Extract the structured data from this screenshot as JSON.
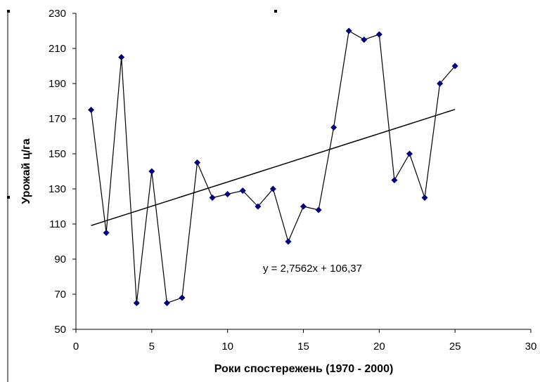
{
  "chart_data": {
    "type": "scatter",
    "title": "",
    "xlabel": "Роки спостережень (1970 - 2000)",
    "ylabel": "Урожай ц/га",
    "xlim": [
      0,
      30
    ],
    "ylim": [
      50,
      230
    ],
    "x_ticks": [
      0,
      5,
      10,
      15,
      20,
      25,
      30
    ],
    "y_ticks": [
      50,
      70,
      90,
      110,
      130,
      150,
      170,
      190,
      210,
      230
    ],
    "grid": false,
    "legend": "none",
    "series": [
      {
        "x": [
          1,
          2,
          3,
          4,
          5,
          6,
          7,
          8,
          9,
          10,
          11,
          12,
          13,
          14,
          15,
          16,
          17,
          18,
          19,
          20,
          21,
          22,
          23,
          24,
          25
        ],
        "y": [
          175,
          105,
          205,
          65,
          140,
          65,
          68,
          145,
          125,
          127,
          129,
          120,
          130,
          100,
          120,
          118,
          165,
          220,
          215,
          218,
          135,
          150,
          125,
          190,
          200
        ],
        "color": "#000080",
        "marker": "diamond",
        "line": "#000000"
      }
    ],
    "trendline": {
      "slope": 2.7562,
      "intercept": 106.37,
      "x_range": [
        1,
        25
      ],
      "label": "y = 2,7562x + 106,37"
    }
  }
}
